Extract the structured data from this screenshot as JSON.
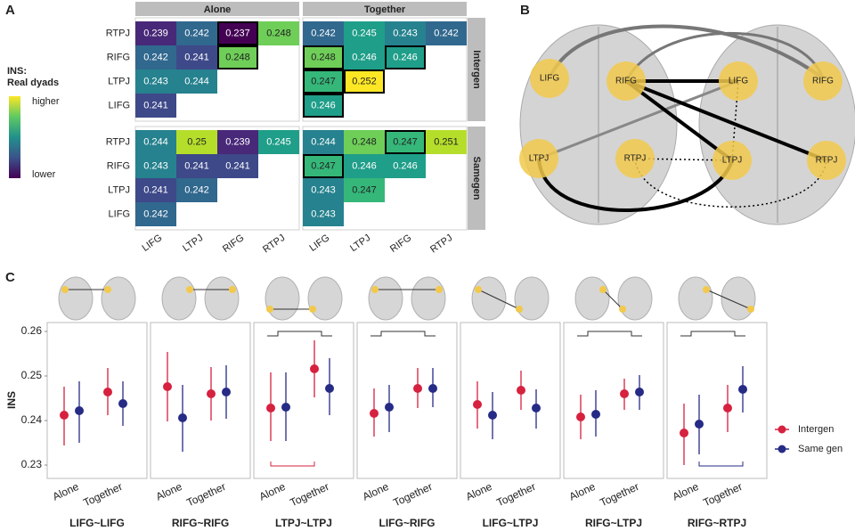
{
  "panel_labels": [
    "A",
    "B",
    "C"
  ],
  "chart_data": [
    {
      "type": "heatmap",
      "legend_title": [
        "INS:",
        "Real dyads"
      ],
      "legend_high": "higher",
      "legend_low": "lower",
      "colormap": "viridis",
      "col_facets": [
        "Alone",
        "Together"
      ],
      "row_facets": [
        "Intergen",
        "Samegen"
      ],
      "rows": [
        "RTPJ",
        "RIFG",
        "LTPJ",
        "LIFG"
      ],
      "columns": [
        "LIFG",
        "LTPJ",
        "RIFG",
        "RTPJ"
      ],
      "facets": [
        {
          "values": [
            [
              0.239,
              0.242,
              0.237,
              0.248
            ],
            [
              0.242,
              0.241,
              0.248,
              null
            ],
            [
              0.243,
              0.244,
              null,
              null
            ],
            [
              0.241,
              null,
              null,
              null
            ]
          ],
          "outlined": [
            [
              0,
              2
            ],
            [
              1,
              2
            ]
          ]
        },
        {
          "values": [
            [
              0.242,
              0.245,
              0.243,
              0.242
            ],
            [
              0.248,
              0.246,
              0.246,
              null
            ],
            [
              0.247,
              0.252,
              null,
              null
            ],
            [
              0.246,
              null,
              null,
              null
            ]
          ],
          "outlined": [
            [
              1,
              0
            ],
            [
              1,
              2
            ],
            [
              2,
              0
            ],
            [
              2,
              1
            ],
            [
              3,
              0
            ]
          ]
        },
        {
          "values": [
            [
              0.244,
              0.25,
              0.239,
              0.245
            ],
            [
              0.243,
              0.241,
              0.241,
              null
            ],
            [
              0.241,
              0.242,
              null,
              null
            ],
            [
              0.242,
              null,
              null,
              null
            ]
          ],
          "outlined": []
        },
        {
          "values": [
            [
              0.244,
              0.248,
              0.247,
              0.251
            ],
            [
              0.247,
              0.246,
              0.246,
              null
            ],
            [
              0.243,
              0.247,
              null,
              null
            ],
            [
              0.243,
              null,
              null,
              null
            ]
          ],
          "outlined": [
            [
              0,
              2
            ],
            [
              1,
              0
            ]
          ]
        }
      ]
    },
    {
      "type": "pointrange",
      "title": "LIFG~LIFG",
      "categories": [
        "Alone",
        "Together"
      ],
      "ylabel": "INS",
      "ylim": [
        0.227,
        0.262
      ],
      "yticks": [
        0.23,
        0.24,
        0.25,
        0.26
      ],
      "series": [
        {
          "name": "Intergen",
          "color": "#d6213f",
          "values": [
            0.2412,
            0.2464
          ],
          "lower": [
            0.2344,
            0.2412
          ],
          "upper": [
            0.2476,
            0.2518
          ]
        },
        {
          "name": "Same gen",
          "color": "#262b86",
          "values": [
            0.2422,
            0.2438
          ],
          "lower": [
            0.235,
            0.2388
          ],
          "upper": [
            0.2488,
            0.2488
          ]
        }
      ],
      "brackets": []
    },
    {
      "type": "pointrange",
      "title": "RIFG~RIFG",
      "categories": [
        "Alone",
        "Together"
      ],
      "series": [
        {
          "values": [
            0.2476,
            0.246
          ],
          "lower": [
            0.2398,
            0.24
          ],
          "upper": [
            0.2554,
            0.252
          ]
        },
        {
          "values": [
            0.2406,
            0.2464
          ],
          "lower": [
            0.233,
            0.2404
          ],
          "upper": [
            0.248,
            0.2524
          ]
        }
      ],
      "brackets": []
    },
    {
      "type": "pointrange",
      "title": "LTPJ~LTPJ",
      "categories": [
        "Alone",
        "Together"
      ],
      "series": [
        {
          "values": [
            0.2428,
            0.2516
          ],
          "lower": [
            0.2354,
            0.2452
          ],
          "upper": [
            0.2508,
            0.258
          ]
        },
        {
          "values": [
            0.243,
            0.2472
          ],
          "lower": [
            0.2354,
            0.2412
          ],
          "upper": [
            0.2508,
            0.254
          ]
        }
      ],
      "brackets": [
        {
          "where": "top"
        },
        {
          "where": "bottom",
          "series": 0
        }
      ]
    },
    {
      "type": "pointrange",
      "title": "LIFG~RIFG",
      "categories": [
        "Alone",
        "Together"
      ],
      "series": [
        {
          "values": [
            0.2416,
            0.2472
          ],
          "lower": [
            0.2364,
            0.2428
          ],
          "upper": [
            0.2472,
            0.2518
          ]
        },
        {
          "values": [
            0.243,
            0.2472
          ],
          "lower": [
            0.2374,
            0.243
          ],
          "upper": [
            0.248,
            0.2518
          ]
        }
      ],
      "brackets": [
        {
          "where": "top"
        }
      ]
    },
    {
      "type": "pointrange",
      "title": "LIFG~LTPJ",
      "categories": [
        "Alone",
        "Together"
      ],
      "series": [
        {
          "values": [
            0.2436,
            0.2468
          ],
          "lower": [
            0.2382,
            0.2424
          ],
          "upper": [
            0.2488,
            0.2512
          ]
        },
        {
          "values": [
            0.2412,
            0.2428
          ],
          "lower": [
            0.2358,
            0.2382
          ],
          "upper": [
            0.2464,
            0.247
          ]
        }
      ],
      "brackets": []
    },
    {
      "type": "pointrange",
      "title": "RIFG~LTPJ",
      "categories": [
        "Alone",
        "Together"
      ],
      "series": [
        {
          "values": [
            0.2408,
            0.246
          ],
          "lower": [
            0.2358,
            0.2424
          ],
          "upper": [
            0.2458,
            0.2494
          ]
        },
        {
          "values": [
            0.2414,
            0.2464
          ],
          "lower": [
            0.2364,
            0.2424
          ],
          "upper": [
            0.2468,
            0.2502
          ]
        }
      ],
      "brackets": [
        {
          "where": "top"
        }
      ]
    },
    {
      "type": "pointrange",
      "title": "RIFG~RTPJ",
      "categories": [
        "Alone",
        "Together"
      ],
      "series": [
        {
          "values": [
            0.2372,
            0.2428
          ],
          "lower": [
            0.23,
            0.2374
          ],
          "upper": [
            0.2438,
            0.248
          ]
        },
        {
          "values": [
            0.2392,
            0.247
          ],
          "lower": [
            0.2324,
            0.2418
          ],
          "upper": [
            0.2458,
            0.2522
          ]
        }
      ],
      "brackets": [
        {
          "where": "top"
        },
        {
          "where": "bottom",
          "series": 1
        }
      ]
    }
  ],
  "diagram": {
    "nodes": [
      "LIFG",
      "RIFG",
      "LTPJ",
      "RTPJ",
      "LIFG",
      "RIFG",
      "LTPJ",
      "RTPJ"
    ]
  }
}
